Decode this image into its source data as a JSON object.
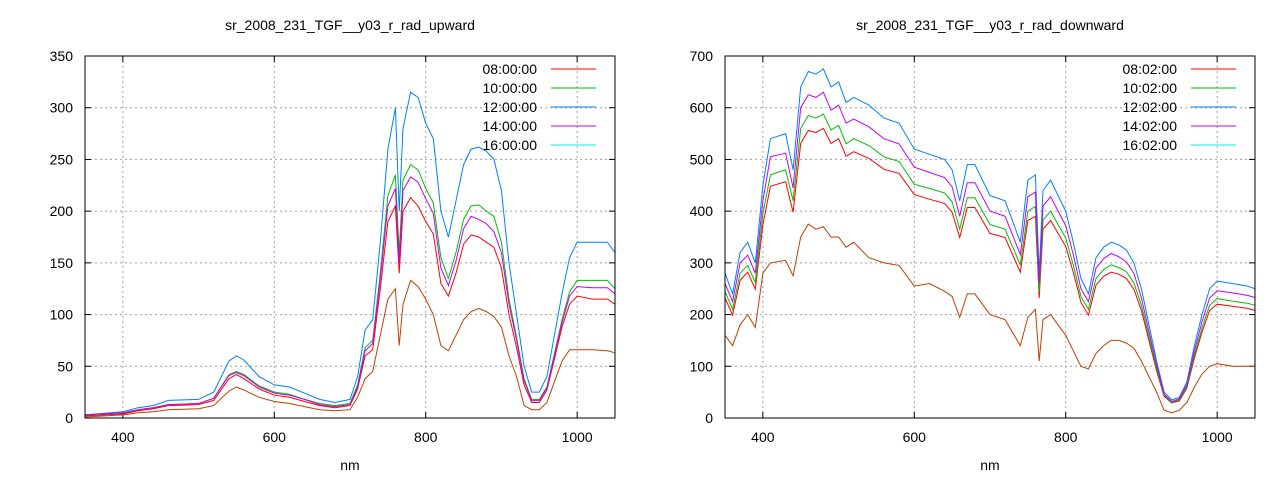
{
  "chart_data": [
    {
      "type": "line",
      "title": "sr_2008_231_TGF__y03_r_rad_upward",
      "xlabel": "nm",
      "ylabel": "",
      "xlim": [
        350,
        1050
      ],
      "ylim": [
        0,
        350
      ],
      "xticks": [
        400,
        600,
        800,
        1000
      ],
      "yticks": [
        0,
        50,
        100,
        150,
        200,
        250,
        300,
        350
      ],
      "grid": true,
      "legend_position": "top-right",
      "x": [
        350,
        400,
        420,
        440,
        460,
        500,
        520,
        540,
        550,
        560,
        580,
        600,
        620,
        640,
        660,
        680,
        700,
        710,
        720,
        730,
        740,
        750,
        760,
        765,
        770,
        780,
        790,
        800,
        810,
        820,
        830,
        840,
        850,
        860,
        870,
        880,
        890,
        900,
        910,
        920,
        930,
        940,
        950,
        960,
        970,
        980,
        990,
        1000,
        1020,
        1040,
        1050
      ],
      "series": [
        {
          "name": "08:00:00",
          "line_color": "#ff0000",
          "legend_color": "#ff0000",
          "values": [
            2,
            4,
            7,
            9,
            12,
            13,
            17,
            38,
            42,
            38,
            28,
            22,
            20,
            16,
            12,
            10,
            12,
            28,
            60,
            66,
            125,
            190,
            205,
            140,
            200,
            213,
            205,
            190,
            178,
            130,
            118,
            140,
            168,
            177,
            175,
            170,
            165,
            145,
            100,
            68,
            32,
            15,
            15,
            27,
            57,
            88,
            110,
            118,
            115,
            115,
            110
          ]
        },
        {
          "name": "10:00:00",
          "line_color": "#00c000",
          "legend_color": "#00c000",
          "values": [
            3,
            5,
            8,
            10,
            13,
            14,
            19,
            42,
            45,
            42,
            31,
            25,
            23,
            18,
            14,
            12,
            14,
            32,
            68,
            75,
            140,
            215,
            235,
            160,
            230,
            245,
            240,
            222,
            208,
            155,
            135,
            160,
            192,
            205,
            206,
            200,
            195,
            170,
            115,
            78,
            38,
            18,
            18,
            30,
            62,
            95,
            122,
            133,
            133,
            133,
            125
          ]
        },
        {
          "name": "12:00:00",
          "line_color": "#0080ff",
          "legend_color": "#0080ff",
          "values": [
            3,
            6,
            10,
            12,
            17,
            18,
            25,
            55,
            60,
            56,
            40,
            32,
            30,
            24,
            18,
            15,
            18,
            40,
            85,
            95,
            170,
            260,
            300,
            200,
            280,
            315,
            310,
            285,
            270,
            200,
            175,
            210,
            245,
            260,
            262,
            258,
            250,
            220,
            150,
            100,
            50,
            25,
            25,
            40,
            80,
            120,
            155,
            170,
            170,
            170,
            160
          ]
        },
        {
          "name": "14:00:00",
          "line_color": "#c000ff",
          "legend_color": "#c000ff",
          "values": [
            3,
            5,
            8,
            10,
            13,
            14,
            19,
            41,
            44,
            41,
            30,
            24,
            22,
            18,
            13,
            11,
            13,
            30,
            65,
            72,
            135,
            205,
            222,
            150,
            220,
            233,
            228,
            212,
            198,
            145,
            128,
            152,
            183,
            195,
            192,
            188,
            180,
            160,
            110,
            75,
            36,
            17,
            17,
            29,
            60,
            92,
            118,
            127,
            126,
            126,
            120
          ]
        },
        {
          "name": "16:00:00",
          "line_color": "#c04000",
          "legend_color": "#00eeee",
          "values": [
            1,
            3,
            5,
            6,
            8,
            9,
            12,
            26,
            30,
            27,
            20,
            16,
            14,
            11,
            8,
            7,
            8,
            20,
            38,
            45,
            80,
            115,
            125,
            70,
            110,
            133,
            127,
            115,
            100,
            70,
            65,
            80,
            95,
            103,
            106,
            103,
            98,
            88,
            60,
            40,
            12,
            8,
            8,
            15,
            35,
            55,
            66,
            66,
            66,
            65,
            63
          ]
        }
      ]
    },
    {
      "type": "line",
      "title": "sr_2008_231_TGF__y03_r_rad_downward",
      "xlabel": "nm",
      "ylabel": "",
      "xlim": [
        350,
        1050
      ],
      "ylim": [
        0,
        700
      ],
      "xticks": [
        400,
        600,
        800,
        1000
      ],
      "yticks": [
        0,
        100,
        200,
        300,
        400,
        500,
        600,
        700
      ],
      "grid": true,
      "legend_position": "top-right",
      "x": [
        350,
        360,
        370,
        380,
        390,
        400,
        410,
        430,
        440,
        450,
        460,
        470,
        480,
        490,
        500,
        510,
        520,
        540,
        560,
        580,
        600,
        620,
        640,
        650,
        660,
        670,
        680,
        700,
        720,
        740,
        750,
        760,
        765,
        770,
        780,
        790,
        800,
        810,
        820,
        830,
        840,
        850,
        860,
        870,
        880,
        890,
        900,
        910,
        920,
        930,
        940,
        950,
        960,
        970,
        980,
        990,
        1000,
        1020,
        1040,
        1050
      ],
      "series": [
        {
          "name": "08:02:00",
          "line_color": "#ff0000",
          "legend_color": "#ff0000",
          "values": [
            232,
            199,
            266,
            282,
            249,
            374,
            448,
            457,
            398,
            531,
            556,
            552,
            560,
            531,
            540,
            506,
            515,
            502,
            481,
            473,
            432,
            423,
            415,
            398,
            349,
            407,
            407,
            357,
            349,
            282,
            382,
            390,
            232,
            365,
            382,
            357,
            332,
            282,
            224,
            199,
            257,
            274,
            282,
            278,
            270,
            249,
            208,
            149,
            91,
            42,
            29,
            33,
            58,
            116,
            166,
            208,
            220,
            216,
            212,
            208
          ]
        },
        {
          "name": "10:02:00",
          "line_color": "#00c000",
          "legend_color": "#00c000",
          "values": [
            245,
            210,
            280,
            295,
            262,
            395,
            470,
            480,
            420,
            560,
            585,
            580,
            588,
            557,
            566,
            530,
            540,
            527,
            505,
            496,
            452,
            444,
            435,
            418,
            365,
            426,
            426,
            374,
            365,
            296,
            400,
            409,
            244,
            383,
            400,
            374,
            348,
            296,
            235,
            210,
            270,
            287,
            296,
            291,
            283,
            261,
            218,
            157,
            96,
            44,
            30,
            35,
            61,
            122,
            174,
            218,
            231,
            226,
            222,
            218
          ]
        },
        {
          "name": "12:02:00",
          "line_color": "#0080ff",
          "legend_color": "#0080ff",
          "values": [
            280,
            240,
            320,
            340,
            300,
            450,
            540,
            550,
            480,
            640,
            670,
            665,
            675,
            640,
            650,
            610,
            620,
            605,
            580,
            570,
            520,
            510,
            500,
            480,
            420,
            490,
            490,
            430,
            420,
            340,
            460,
            470,
            280,
            440,
            460,
            430,
            400,
            340,
            270,
            240,
            310,
            330,
            340,
            335,
            325,
            300,
            250,
            180,
            110,
            50,
            35,
            40,
            70,
            140,
            200,
            250,
            265,
            260,
            255,
            250
          ]
        },
        {
          "name": "14:02:00",
          "line_color": "#c000ff",
          "legend_color": "#c000ff",
          "values": [
            260,
            225,
            300,
            315,
            280,
            420,
            505,
            512,
            445,
            600,
            625,
            620,
            630,
            595,
            605,
            570,
            578,
            563,
            540,
            530,
            485,
            475,
            465,
            447,
            390,
            455,
            455,
            400,
            390,
            316,
            428,
            437,
            260,
            410,
            428,
            400,
            372,
            316,
            250,
            225,
            290,
            308,
            318,
            312,
            302,
            280,
            232,
            167,
            102,
            46,
            32,
            37,
            65,
            130,
            186,
            232,
            246,
            242,
            237,
            233
          ]
        },
        {
          "name": "16:02:00",
          "line_color": "#c04000",
          "legend_color": "#00eeee",
          "values": [
            160,
            140,
            180,
            200,
            175,
            280,
            300,
            305,
            275,
            350,
            375,
            365,
            370,
            350,
            350,
            330,
            340,
            310,
            300,
            295,
            255,
            260,
            245,
            235,
            195,
            240,
            240,
            200,
            190,
            140,
            195,
            210,
            110,
            190,
            200,
            180,
            160,
            130,
            100,
            95,
            125,
            140,
            150,
            150,
            145,
            135,
            110,
            80,
            50,
            15,
            10,
            15,
            30,
            60,
            85,
            100,
            105,
            100,
            100,
            100
          ]
        }
      ]
    }
  ]
}
